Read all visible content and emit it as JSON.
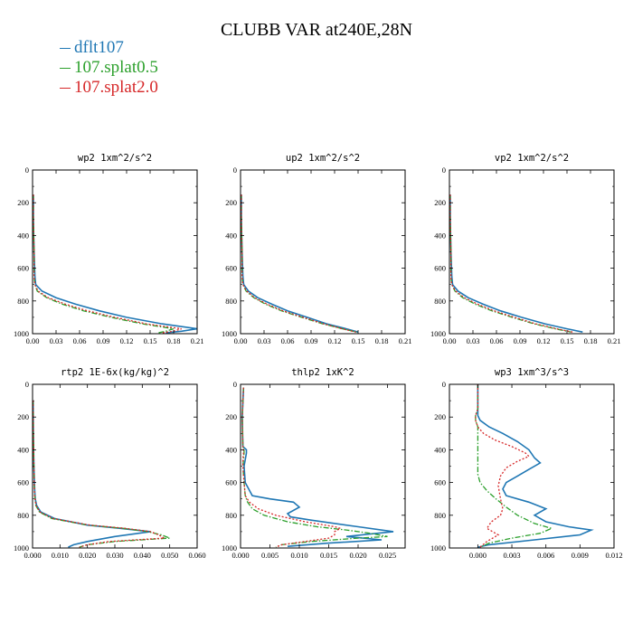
{
  "title": "CLUBB VAR at240E,28N",
  "legend": [
    {
      "label": "dflt107",
      "color": "#1f77b4"
    },
    {
      "label": "107.splat0.5",
      "color": "#2ca02c"
    },
    {
      "label": "107.splat2.0",
      "color": "#d62728"
    }
  ],
  "chart_data": [
    {
      "type": "line",
      "title": "wp2  1xm^2/s^2",
      "ylim": [
        1000,
        0
      ],
      "xlim": [
        0,
        0.21
      ],
      "xticks": [
        "0.00",
        "0.03",
        "0.06",
        "0.09",
        "0.12",
        "0.15",
        "0.18",
        "0.21"
      ],
      "yticks": [
        "0",
        "200",
        "400",
        "600",
        "800",
        "1000"
      ],
      "series": [
        {
          "name": "dflt107",
          "y": [
            150,
            300,
            500,
            650,
            700,
            740,
            780,
            820,
            860,
            900,
            940,
            970,
            985,
            995
          ],
          "x": [
            0.001,
            0.001,
            0.002,
            0.003,
            0.004,
            0.012,
            0.03,
            0.055,
            0.085,
            0.12,
            0.165,
            0.21,
            0.19,
            0.17
          ]
        },
        {
          "name": "107.splat0.5",
          "y": [
            150,
            300,
            500,
            650,
            700,
            740,
            780,
            820,
            860,
            900,
            940,
            970,
            985,
            995
          ],
          "x": [
            0.001,
            0.001,
            0.002,
            0.002,
            0.003,
            0.006,
            0.018,
            0.038,
            0.065,
            0.1,
            0.14,
            0.18,
            0.17,
            0.16
          ]
        },
        {
          "name": "107.splat2.0",
          "y": [
            150,
            300,
            500,
            650,
            700,
            740,
            780,
            820,
            860,
            900,
            940,
            970,
            985,
            995
          ],
          "x": [
            0.001,
            0.001,
            0.002,
            0.002,
            0.003,
            0.007,
            0.02,
            0.042,
            0.07,
            0.105,
            0.145,
            0.19,
            0.18,
            0.165
          ]
        }
      ]
    },
    {
      "type": "line",
      "title": "up2  1xm^2/s^2",
      "ylim": [
        1000,
        0
      ],
      "xlim": [
        0,
        0.21
      ],
      "xticks": [
        "0.00",
        "0.03",
        "0.06",
        "0.09",
        "0.12",
        "0.15",
        "0.18",
        "0.21"
      ],
      "yticks": [
        "0",
        "200",
        "400",
        "600",
        "800",
        "1000"
      ],
      "series": [
        {
          "name": "dflt107",
          "y": [
            150,
            300,
            500,
            650,
            700,
            740,
            780,
            820,
            860,
            900,
            940,
            970,
            990
          ],
          "x": [
            0.001,
            0.001,
            0.002,
            0.003,
            0.004,
            0.01,
            0.022,
            0.04,
            0.06,
            0.085,
            0.11,
            0.135,
            0.15
          ]
        },
        {
          "name": "107.splat0.5",
          "y": [
            150,
            300,
            500,
            650,
            700,
            740,
            780,
            820,
            860,
            900,
            940,
            970,
            990
          ],
          "x": [
            0.001,
            0.001,
            0.002,
            0.002,
            0.003,
            0.007,
            0.017,
            0.032,
            0.052,
            0.078,
            0.105,
            0.13,
            0.148
          ]
        },
        {
          "name": "107.splat2.0",
          "y": [
            150,
            300,
            500,
            650,
            700,
            740,
            780,
            820,
            860,
            900,
            940,
            970,
            990
          ],
          "x": [
            0.001,
            0.001,
            0.002,
            0.002,
            0.003,
            0.008,
            0.018,
            0.034,
            0.054,
            0.08,
            0.106,
            0.13,
            0.147
          ]
        }
      ]
    },
    {
      "type": "line",
      "title": "vp2  1xm^2/s^2",
      "ylim": [
        1000,
        0
      ],
      "xlim": [
        0,
        0.21
      ],
      "xticks": [
        "0.00",
        "0.03",
        "0.06",
        "0.09",
        "0.12",
        "0.15",
        "0.18",
        "0.21"
      ],
      "yticks": [
        "0",
        "200",
        "400",
        "600",
        "800",
        "1000"
      ],
      "series": [
        {
          "name": "dflt107",
          "y": [
            150,
            300,
            500,
            650,
            700,
            740,
            780,
            820,
            860,
            900,
            940,
            970,
            990
          ],
          "x": [
            0.001,
            0.001,
            0.002,
            0.003,
            0.004,
            0.011,
            0.024,
            0.043,
            0.065,
            0.092,
            0.122,
            0.15,
            0.17
          ]
        },
        {
          "name": "107.splat0.5",
          "y": [
            150,
            300,
            500,
            650,
            700,
            740,
            780,
            820,
            860,
            900,
            940,
            970,
            990
          ],
          "x": [
            0.001,
            0.001,
            0.002,
            0.002,
            0.003,
            0.007,
            0.017,
            0.033,
            0.054,
            0.08,
            0.108,
            0.135,
            0.155
          ]
        },
        {
          "name": "107.splat2.0",
          "y": [
            150,
            300,
            500,
            650,
            700,
            740,
            780,
            820,
            860,
            900,
            940,
            970,
            990
          ],
          "x": [
            0.001,
            0.001,
            0.002,
            0.002,
            0.003,
            0.008,
            0.019,
            0.036,
            0.057,
            0.083,
            0.11,
            0.137,
            0.157
          ]
        }
      ]
    },
    {
      "type": "line",
      "title": "rtp2  1E-6x(kg/kg)^2",
      "ylim": [
        1000,
        0
      ],
      "xlim": [
        0,
        0.06
      ],
      "xticks": [
        "0.000",
        "0.010",
        "0.020",
        "0.030",
        "0.040",
        "0.050",
        "0.060"
      ],
      "yticks": [
        "0",
        "200",
        "400",
        "600",
        "800",
        "1000"
      ],
      "series": [
        {
          "name": "dflt107",
          "y": [
            100,
            300,
            500,
            650,
            700,
            740,
            780,
            820,
            860,
            880,
            900,
            930,
            960,
            980,
            995
          ],
          "x": [
            0.0002,
            0.0003,
            0.0005,
            0.0008,
            0.001,
            0.0015,
            0.003,
            0.008,
            0.02,
            0.032,
            0.043,
            0.03,
            0.02,
            0.015,
            0.013
          ]
        },
        {
          "name": "107.splat0.5",
          "y": [
            100,
            300,
            500,
            650,
            700,
            740,
            780,
            820,
            860,
            880,
            900,
            920,
            940,
            960,
            980,
            995
          ],
          "x": [
            0.0002,
            0.0003,
            0.0005,
            0.0007,
            0.0009,
            0.0012,
            0.0025,
            0.007,
            0.02,
            0.033,
            0.042,
            0.047,
            0.05,
            0.03,
            0.02,
            0.017
          ]
        },
        {
          "name": "107.splat2.0",
          "y": [
            100,
            300,
            500,
            650,
            700,
            740,
            780,
            820,
            860,
            880,
            900,
            920,
            940,
            960,
            980,
            995
          ],
          "x": [
            0.0002,
            0.0003,
            0.0005,
            0.0007,
            0.0009,
            0.0013,
            0.0027,
            0.0075,
            0.021,
            0.034,
            0.043,
            0.046,
            0.048,
            0.028,
            0.02,
            0.017
          ]
        }
      ]
    },
    {
      "type": "line",
      "title": "thlp2  1xK^2",
      "ylim": [
        1000,
        0
      ],
      "xlim": [
        0,
        0.028
      ],
      "xticks": [
        "0.000",
        "0.005",
        "0.010",
        "0.015",
        "0.020",
        "0.025"
      ],
      "yticks": [
        "0",
        "200",
        "400",
        "600",
        "800",
        "1000"
      ],
      "series": [
        {
          "name": "dflt107",
          "y": [
            20,
            200,
            380,
            400,
            420,
            460,
            500,
            600,
            680,
            700,
            720,
            750,
            790,
            810,
            830,
            870,
            900,
            915,
            930,
            950,
            970,
            990
          ],
          "x": [
            0.0005,
            0.0003,
            0.0004,
            0.001,
            0.001,
            0.0008,
            0.0006,
            0.0008,
            0.002,
            0.005,
            0.009,
            0.01,
            0.008,
            0.0085,
            0.012,
            0.02,
            0.026,
            0.022,
            0.018,
            0.024,
            0.015,
            0.008
          ]
        },
        {
          "name": "107.splat0.5",
          "y": [
            20,
            200,
            380,
            400,
            420,
            460,
            500,
            600,
            680,
            720,
            760,
            800,
            840,
            870,
            890,
            910,
            930,
            940,
            960,
            980,
            995
          ],
          "x": [
            0.0005,
            0.0003,
            0.0004,
            0.0006,
            0.0006,
            0.0005,
            0.0004,
            0.0006,
            0.0008,
            0.0012,
            0.002,
            0.004,
            0.008,
            0.013,
            0.018,
            0.022,
            0.025,
            0.02,
            0.012,
            0.007,
            0.006
          ]
        },
        {
          "name": "107.splat2.0",
          "y": [
            20,
            200,
            380,
            400,
            420,
            460,
            500,
            600,
            680,
            720,
            760,
            800,
            840,
            870,
            880,
            900,
            920,
            940,
            960,
            980,
            995
          ],
          "x": [
            0.0005,
            0.0003,
            0.0004,
            0.0005,
            0.0005,
            0.0004,
            0.0004,
            0.0006,
            0.0008,
            0.0015,
            0.003,
            0.006,
            0.011,
            0.016,
            0.017,
            0.016,
            0.016,
            0.015,
            0.011,
            0.007,
            0.006
          ]
        }
      ]
    },
    {
      "type": "line",
      "title": "wp3  1xm^3/s^3",
      "ylim": [
        1000,
        0
      ],
      "xlim": [
        -0.0025,
        0.012
      ],
      "xticks": [
        "0.000",
        "0.003",
        "0.006",
        "0.009",
        "0.012"
      ],
      "yticks": [
        "0",
        "200",
        "400",
        "600",
        "800",
        "1000"
      ],
      "series": [
        {
          "name": "dflt107",
          "y": [
            0,
            150,
            190,
            220,
            260,
            300,
            350,
            400,
            450,
            480,
            520,
            560,
            600,
            640,
            680,
            720,
            760,
            780,
            800,
            840,
            870,
            890,
            920,
            950,
            980,
            995
          ],
          "x": [
            0,
            0,
            0,
            0.0002,
            0.001,
            0.0022,
            0.0035,
            0.0045,
            0.005,
            0.0055,
            0.0045,
            0.0035,
            0.0025,
            0.0022,
            0.0025,
            0.0045,
            0.006,
            0.0055,
            0.005,
            0.006,
            0.008,
            0.01,
            0.009,
            0.005,
            0.001,
            0
          ]
        },
        {
          "name": "107.splat0.5",
          "y": [
            0,
            150,
            190,
            220,
            260,
            300,
            350,
            400,
            450,
            500,
            550,
            600,
            650,
            700,
            750,
            800,
            850,
            880,
            910,
            940,
            970,
            995
          ],
          "x": [
            0,
            0,
            -0.0002,
            -0.0002,
            0,
            0,
            0,
            0,
            0,
            0,
            0,
            0.0002,
            0.0008,
            0.0016,
            0.0025,
            0.0035,
            0.005,
            0.0065,
            0.0055,
            0.003,
            0.001,
            0.0002
          ]
        },
        {
          "name": "107.splat2.0",
          "y": [
            0,
            150,
            190,
            220,
            260,
            300,
            340,
            380,
            420,
            440,
            470,
            510,
            560,
            620,
            700,
            760,
            800,
            840,
            880,
            920,
            960,
            995
          ],
          "x": [
            0,
            0,
            -0.0002,
            -0.0002,
            0,
            0.0005,
            0.0015,
            0.003,
            0.0042,
            0.0045,
            0.0035,
            0.0025,
            0.002,
            0.0018,
            0.002,
            0.0022,
            0.002,
            0.0012,
            0.0008,
            0.0018,
            0.0008,
            0.0002
          ]
        }
      ]
    }
  ]
}
